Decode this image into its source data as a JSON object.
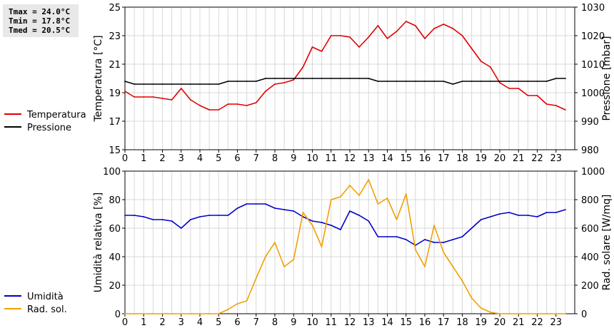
{
  "stats": {
    "tmax": "Tmax = 24.0°C",
    "tmin": "Tmin = 17.8°C",
    "tmed": "Tmed = 20.5°C"
  },
  "chart_data": [
    {
      "type": "line",
      "ylabel": "Temperatura [°C]",
      "y2label": "Pressione [mbar]",
      "xlim": [
        0,
        24
      ],
      "ylim": [
        15,
        25
      ],
      "y2lim": [
        980,
        1030
      ],
      "x_ticks": [
        0,
        1,
        2,
        3,
        4,
        5,
        6,
        7,
        8,
        9,
        10,
        11,
        12,
        13,
        14,
        15,
        16,
        17,
        18,
        19,
        20,
        21,
        22,
        23
      ],
      "y_ticks": [
        15,
        17,
        19,
        21,
        23,
        25
      ],
      "y2_ticks": [
        980,
        990,
        1000,
        1010,
        1020,
        1030
      ],
      "grid": true,
      "legend_position": "left",
      "series": [
        {
          "name": "Temperatura",
          "axis": "left",
          "color": "#e00000",
          "x": [
            0,
            0.5,
            1,
            1.5,
            2,
            2.5,
            3,
            3.5,
            4,
            4.5,
            5,
            5.5,
            6,
            6.5,
            7,
            7.5,
            8,
            8.5,
            9,
            9.5,
            10,
            10.5,
            11,
            11.5,
            12,
            12.5,
            13,
            13.5,
            14,
            14.5,
            15,
            15.5,
            16,
            16.5,
            17,
            17.5,
            18,
            18.5,
            19,
            19.5,
            20,
            20.5,
            21,
            21.5,
            22,
            22.5,
            23,
            23.5
          ],
          "values": [
            19.1,
            18.7,
            18.7,
            18.7,
            18.6,
            18.5,
            19.3,
            18.5,
            18.1,
            17.8,
            17.8,
            18.2,
            18.2,
            18.1,
            18.3,
            19.1,
            19.6,
            19.7,
            19.9,
            20.8,
            22.2,
            21.9,
            23.0,
            23.0,
            22.9,
            22.2,
            22.9,
            23.7,
            22.8,
            23.3,
            24.0,
            23.7,
            22.8,
            23.5,
            23.8,
            23.5,
            23.0,
            22.1,
            21.2,
            20.8,
            19.7,
            19.3,
            19.3,
            18.8,
            18.8,
            18.2,
            18.1,
            17.8
          ]
        },
        {
          "name": "Pressione",
          "axis": "right",
          "color": "#000000",
          "x": [
            0,
            0.5,
            1,
            1.5,
            2,
            2.5,
            3,
            3.5,
            4,
            4.5,
            5,
            5.5,
            6,
            6.5,
            7,
            7.5,
            8,
            8.5,
            9,
            9.5,
            10,
            10.5,
            11,
            11.5,
            12,
            12.5,
            13,
            13.5,
            14,
            14.5,
            15,
            15.5,
            16,
            16.5,
            17,
            17.5,
            18,
            18.5,
            19,
            19.5,
            20,
            20.5,
            21,
            21.5,
            22,
            22.5,
            23,
            23.5
          ],
          "values": [
            1004,
            1003,
            1003,
            1003,
            1003,
            1003,
            1003,
            1003,
            1003,
            1003,
            1003,
            1004,
            1004,
            1004,
            1004,
            1005,
            1005,
            1005,
            1005,
            1005,
            1005,
            1005,
            1005,
            1005,
            1005,
            1005,
            1005,
            1004,
            1004,
            1004,
            1004,
            1004,
            1004,
            1004,
            1004,
            1003,
            1004,
            1004,
            1004,
            1004,
            1004,
            1004,
            1004,
            1004,
            1004,
            1004,
            1005,
            1005
          ]
        }
      ]
    },
    {
      "type": "line",
      "ylabel": "Umidità relativa [%]",
      "y2label": "Rad. solare [W/mq]",
      "xlim": [
        0,
        24
      ],
      "ylim": [
        0,
        100
      ],
      "y2lim": [
        0,
        1000
      ],
      "x_ticks": [
        0,
        1,
        2,
        3,
        4,
        5,
        6,
        7,
        8,
        9,
        10,
        11,
        12,
        13,
        14,
        15,
        16,
        17,
        18,
        19,
        20,
        21,
        22,
        23
      ],
      "y_ticks": [
        0,
        20,
        40,
        60,
        80,
        100
      ],
      "y2_ticks": [
        0,
        200,
        400,
        600,
        800,
        1000
      ],
      "grid": true,
      "legend_position": "left",
      "series": [
        {
          "name": "Umidità",
          "axis": "left",
          "color": "#0000c8",
          "x": [
            0,
            0.5,
            1,
            1.5,
            2,
            2.5,
            3,
            3.5,
            4,
            4.5,
            5,
            5.5,
            6,
            6.5,
            7,
            7.5,
            8,
            8.5,
            9,
            9.5,
            10,
            10.5,
            11,
            11.5,
            12,
            12.5,
            13,
            13.5,
            14,
            14.5,
            15,
            15.5,
            16,
            16.5,
            17,
            17.5,
            18,
            18.5,
            19,
            19.5,
            20,
            20.5,
            21,
            21.5,
            22,
            22.5,
            23,
            23.5
          ],
          "values": [
            69,
            69,
            68,
            66,
            66,
            65,
            60,
            66,
            68,
            69,
            69,
            69,
            74,
            77,
            77,
            77,
            74,
            73,
            72,
            68,
            65,
            64,
            62,
            59,
            72,
            69,
            65,
            54,
            54,
            54,
            52,
            48,
            52,
            50,
            50,
            52,
            54,
            60,
            66,
            68,
            70,
            71,
            69,
            69,
            68,
            71,
            71,
            73
          ]
        },
        {
          "name": "Rad. sol.",
          "axis": "right",
          "color": "#f0a000",
          "x": [
            0,
            0.5,
            1,
            1.5,
            2,
            2.5,
            3,
            3.5,
            4,
            4.5,
            5,
            5.5,
            6,
            6.5,
            7,
            7.5,
            8,
            8.5,
            9,
            9.5,
            10,
            10.5,
            11,
            11.5,
            12,
            12.5,
            13,
            13.5,
            14,
            14.5,
            15,
            15.5,
            16,
            16.5,
            17,
            17.5,
            18,
            18.5,
            19,
            19.5,
            20,
            20.5,
            21,
            21.5,
            22,
            22.5,
            23,
            23.5
          ],
          "values": [
            0,
            0,
            0,
            0,
            0,
            0,
            0,
            0,
            0,
            0,
            0,
            30,
            70,
            90,
            250,
            400,
            500,
            330,
            380,
            710,
            620,
            470,
            800,
            820,
            900,
            830,
            940,
            770,
            810,
            660,
            840,
            450,
            330,
            620,
            430,
            330,
            230,
            110,
            40,
            10,
            0,
            0,
            0,
            0,
            0,
            0,
            0,
            0
          ]
        }
      ]
    }
  ]
}
